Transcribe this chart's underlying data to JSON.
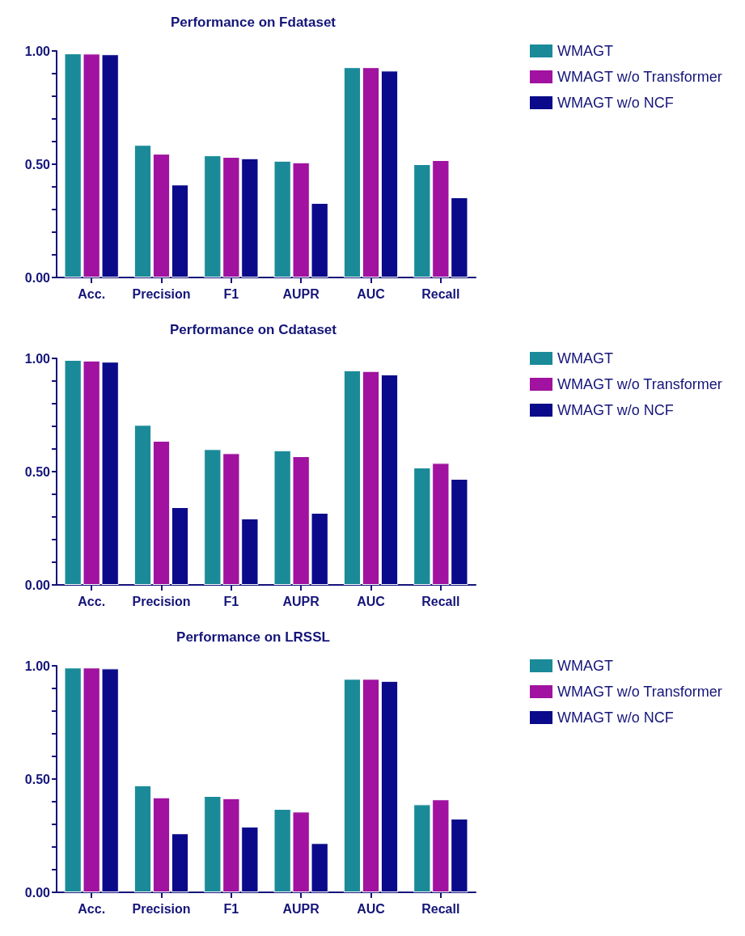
{
  "chart_data": [
    {
      "type": "bar",
      "title": "Performance on Fdataset",
      "categories": [
        "Acc.",
        "Precision",
        "F1",
        "AUPR",
        "AUC",
        "Recall"
      ],
      "series": [
        {
          "name": "WMAGT",
          "color": "#1a8a99",
          "values": [
            0.989,
            0.585,
            0.539,
            0.515,
            0.928,
            0.5
          ]
        },
        {
          "name": "WMAGT w/o Transformer",
          "color": "#a0129f",
          "values": [
            0.988,
            0.546,
            0.532,
            0.508,
            0.928,
            0.518
          ]
        },
        {
          "name": "WMAGT w/o NCF",
          "color": "#0a0a8a",
          "values": [
            0.985,
            0.41,
            0.526,
            0.329,
            0.913,
            0.354
          ]
        }
      ],
      "ylim": [
        0,
        1
      ],
      "yticks": [
        {
          "value": 0,
          "label": "0.00"
        },
        {
          "value": 0.1,
          "label": null
        },
        {
          "value": 0.2,
          "label": null
        },
        {
          "value": 0.3,
          "label": null
        },
        {
          "value": 0.4,
          "label": null
        },
        {
          "value": 0.5,
          "label": "0.50"
        },
        {
          "value": 0.6,
          "label": null
        },
        {
          "value": 0.7,
          "label": null
        },
        {
          "value": 0.8,
          "label": null
        },
        {
          "value": 0.9,
          "label": null
        },
        {
          "value": 1,
          "label": "1.00"
        }
      ],
      "grid": false,
      "legend": "top right"
    },
    {
      "type": "bar",
      "title": "Performance on Cdataset",
      "categories": [
        "Acc.",
        "Precision",
        "F1",
        "AUPR",
        "AUC",
        "Recall"
      ],
      "series": [
        {
          "name": "WMAGT",
          "color": "#1a8a99",
          "values": [
            0.993,
            0.706,
            0.599,
            0.594,
            0.947,
            0.518
          ]
        },
        {
          "name": "WMAGT w/o Transformer",
          "color": "#a0129f",
          "values": [
            0.99,
            0.636,
            0.581,
            0.568,
            0.944,
            0.538
          ]
        },
        {
          "name": "WMAGT w/o NCF",
          "color": "#0a0a8a",
          "values": [
            0.985,
            0.343,
            0.293,
            0.318,
            0.929,
            0.468
          ]
        }
      ],
      "ylim": [
        0,
        1
      ],
      "yticks": [
        {
          "value": 0,
          "label": "0.00"
        },
        {
          "value": 0.1,
          "label": null
        },
        {
          "value": 0.2,
          "label": null
        },
        {
          "value": 0.3,
          "label": null
        },
        {
          "value": 0.4,
          "label": null
        },
        {
          "value": 0.5,
          "label": "0.50"
        },
        {
          "value": 0.6,
          "label": null
        },
        {
          "value": 0.7,
          "label": null
        },
        {
          "value": 0.8,
          "label": null
        },
        {
          "value": 0.9,
          "label": null
        },
        {
          "value": 1,
          "label": "1.00"
        }
      ],
      "grid": false,
      "legend": "top right"
    },
    {
      "type": "bar",
      "title": "Performance on LRSSL",
      "categories": [
        "Acc.",
        "Precision",
        "F1",
        "AUPR",
        "AUC",
        "Recall"
      ],
      "series": [
        {
          "name": "WMAGT",
          "color": "#1a8a99",
          "values": [
            0.992,
            0.472,
            0.425,
            0.368,
            0.942,
            0.388
          ]
        },
        {
          "name": "WMAGT w/o Transformer",
          "color": "#a0129f",
          "values": [
            0.992,
            0.419,
            0.415,
            0.356,
            0.942,
            0.41
          ]
        },
        {
          "name": "WMAGT w/o NCF",
          "color": "#0a0a8a",
          "values": [
            0.988,
            0.26,
            0.29,
            0.217,
            0.933,
            0.325
          ]
        }
      ],
      "ylim": [
        0,
        1
      ],
      "yticks": [
        {
          "value": 0,
          "label": "0.00"
        },
        {
          "value": 0.1,
          "label": null
        },
        {
          "value": 0.2,
          "label": null
        },
        {
          "value": 0.3,
          "label": null
        },
        {
          "value": 0.4,
          "label": null
        },
        {
          "value": 0.5,
          "label": "0.50"
        },
        {
          "value": 0.6,
          "label": null
        },
        {
          "value": 0.7,
          "label": null
        },
        {
          "value": 0.8,
          "label": null
        },
        {
          "value": 0.9,
          "label": null
        },
        {
          "value": 1,
          "label": "1.00"
        }
      ],
      "grid": false,
      "legend": "top right"
    }
  ]
}
